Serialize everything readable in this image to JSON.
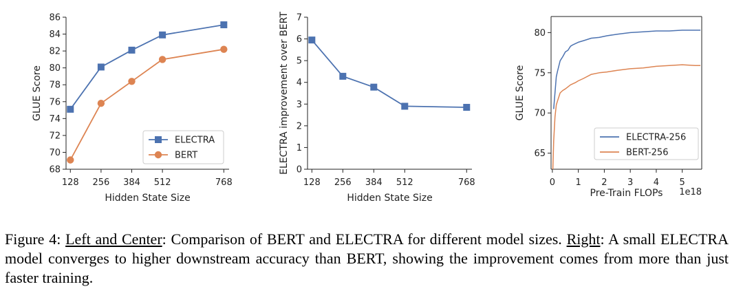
{
  "colors": {
    "electra": "#4c72b0",
    "bert": "#dd8452"
  },
  "chart_data": [
    {
      "type": "line",
      "xlabel": "Hidden State Size",
      "ylabel": "GLUE Score",
      "x": [
        128,
        256,
        384,
        512,
        768
      ],
      "xticks": [
        128,
        256,
        384,
        512,
        768
      ],
      "xticklabels": [
        "128",
        "256",
        "384",
        "512",
        "768"
      ],
      "xlim": [
        110,
        790
      ],
      "ylim": [
        68,
        86
      ],
      "yticks": [
        68,
        70,
        72,
        74,
        76,
        78,
        80,
        82,
        84,
        86
      ],
      "yticklabels": [
        "68",
        "70",
        "72",
        "74",
        "76",
        "78",
        "80",
        "82",
        "84",
        "86"
      ],
      "legend_position": "lower-right",
      "grid": false,
      "series": [
        {
          "name": "ELECTRA",
          "color": "#4c72b0",
          "marker": "square",
          "values": [
            75.1,
            80.1,
            82.1,
            83.9,
            85.1
          ]
        },
        {
          "name": "BERT",
          "color": "#dd8452",
          "marker": "circle",
          "values": [
            69.1,
            75.8,
            78.4,
            81.0,
            82.2
          ]
        }
      ]
    },
    {
      "type": "line",
      "xlabel": "Hidden State Size",
      "ylabel": "ELECTRA improvement over BERT",
      "x": [
        128,
        256,
        384,
        512,
        768
      ],
      "xticks": [
        128,
        256,
        384,
        512,
        768
      ],
      "xticklabels": [
        "128",
        "256",
        "384",
        "512",
        "768"
      ],
      "xlim": [
        110,
        790
      ],
      "ylim": [
        0,
        7
      ],
      "yticks": [
        0,
        1,
        2,
        3,
        4,
        5,
        6,
        7
      ],
      "yticklabels": [
        "0",
        "1",
        "2",
        "3",
        "4",
        "5",
        "6",
        "7"
      ],
      "grid": false,
      "series": [
        {
          "color": "#4c72b0",
          "marker": "square",
          "values": [
            5.95,
            4.28,
            3.78,
            2.9,
            2.85
          ]
        }
      ]
    },
    {
      "type": "line",
      "xlabel": "Pre-Train FLOPs",
      "x_offset_label": "1e18",
      "ylabel": "GLUE Score",
      "xlim": [
        -0.05,
        5.75
      ],
      "ylim": [
        63,
        82
      ],
      "xticks": [
        0,
        1,
        2,
        3,
        4,
        5
      ],
      "xticklabels": [
        "0",
        "1",
        "2",
        "3",
        "4",
        "5"
      ],
      "yticks": [
        65,
        70,
        75,
        80
      ],
      "yticklabels": [
        "65",
        "70",
        "75",
        "80"
      ],
      "legend_position": "lower-right",
      "grid": false,
      "series": [
        {
          "name": "ELECTRA-256",
          "color": "#4c72b0",
          "x": [
            0.05,
            0.1,
            0.15,
            0.2,
            0.3,
            0.4,
            0.5,
            0.6,
            0.7,
            0.8,
            1.0,
            1.2,
            1.5,
            1.8,
            2.1,
            2.5,
            3.0,
            3.5,
            4.0,
            4.5,
            5.0,
            5.5,
            5.7
          ],
          "values": [
            70.5,
            72.5,
            74.5,
            75.2,
            76.5,
            77.0,
            77.6,
            77.8,
            78.3,
            78.5,
            78.8,
            79.0,
            79.3,
            79.4,
            79.6,
            79.8,
            80.0,
            80.1,
            80.2,
            80.2,
            80.3,
            80.3,
            80.3
          ]
        },
        {
          "name": "BERT-256",
          "color": "#dd8452",
          "x": [
            0.02,
            0.05,
            0.1,
            0.15,
            0.2,
            0.3,
            0.4,
            0.5,
            0.7,
            0.9,
            1.0,
            1.2,
            1.5,
            1.8,
            2.1,
            2.5,
            3.0,
            3.5,
            4.0,
            4.5,
            5.0,
            5.5,
            5.7
          ],
          "values": [
            63.0,
            66.5,
            69.5,
            71.0,
            71.5,
            72.5,
            72.8,
            73.0,
            73.5,
            73.8,
            74.0,
            74.3,
            74.8,
            75.0,
            75.1,
            75.3,
            75.5,
            75.6,
            75.8,
            75.9,
            76.0,
            75.9,
            75.9
          ]
        }
      ]
    }
  ],
  "caption": {
    "prefix": "Figure 4: ",
    "part1": "Left and Center",
    "text1": ": Comparison of BERT and ELECTRA for different model sizes. ",
    "part2": "Right",
    "text2": ": A small ELECTRA model converges to higher downstream accuracy than BERT, showing the improvement comes from more than just faster training."
  }
}
